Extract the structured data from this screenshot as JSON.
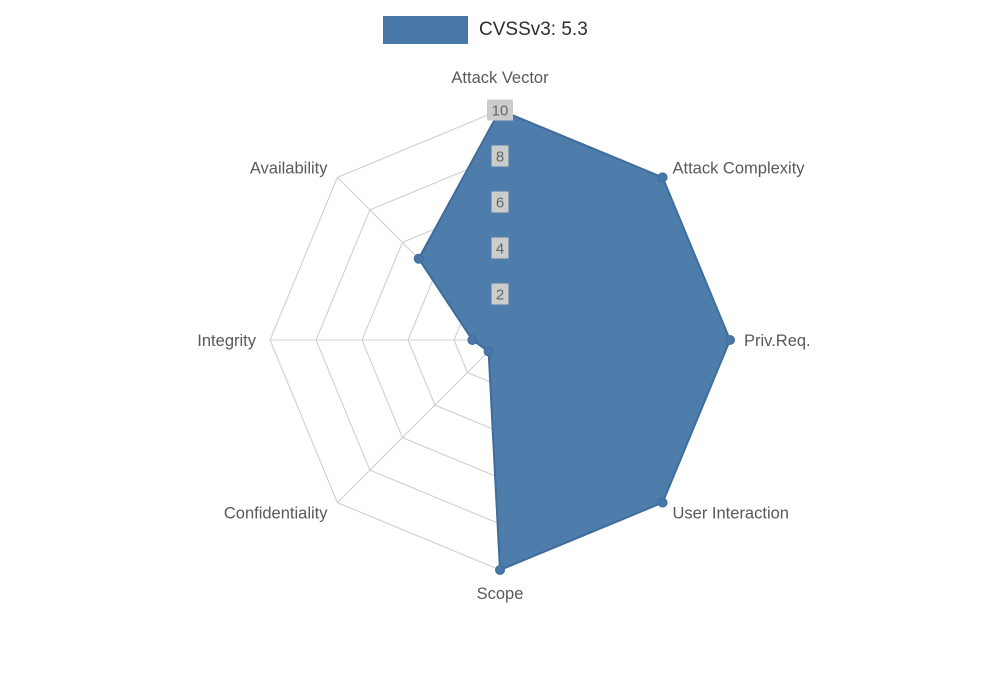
{
  "legend": {
    "label": "CVSSv3: 5.3",
    "swatch_color": "#4878a8"
  },
  "chart_data": {
    "type": "radar",
    "title": "CVSSv3: 5.3",
    "categories": [
      "Attack Vector",
      "Attack Complexity",
      "Priv.Req.",
      "User Interaction",
      "Scope",
      "Confidentiality",
      "Integrity",
      "Availability"
    ],
    "series": [
      {
        "name": "CVSSv3: 5.3",
        "values": [
          10,
          10,
          10,
          10,
          10,
          0.7,
          1.2,
          5
        ]
      }
    ],
    "ticks": [
      2,
      4,
      6,
      8,
      10
    ],
    "rmax": 10,
    "grid": true,
    "legend_position": "top-center",
    "fill_color": "#4878a8",
    "stroke_color": "#3e6c9b",
    "grid_color": "#cccccc",
    "tick_bg": "#cccccc",
    "tick_color": "#666666",
    "label_color": "#595959"
  }
}
